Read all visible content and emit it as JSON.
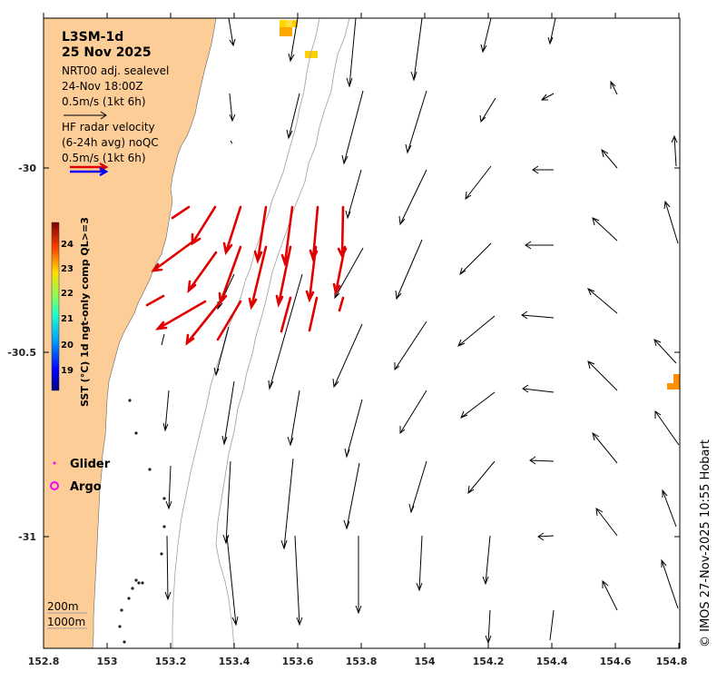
{
  "title": {
    "product": "L3SM-1d",
    "date": "25 Nov 2025"
  },
  "legend": {
    "sealevel_line": "NRT00 adj. sealevel",
    "sealevel_time": "24-Nov 18:00Z",
    "sealevel_scale": "0.5m/s (1kt 6h)",
    "radar_line1": "HF radar velocity",
    "radar_line2": "(6-24h avg) noQC",
    "radar_scale": "0.5m/s (1kt 6h)",
    "glider_label": "Glider",
    "argo_label": "Argo",
    "contour_200": "200m",
    "contour_1000": "1000m"
  },
  "colorbar": {
    "label": "SST (°C) 1d ngt-only comp QL>=3",
    "ticks": [
      "24",
      "23",
      "22",
      "21",
      "20",
      "19"
    ]
  },
  "axes": {
    "x_ticks": [
      "152.8",
      "153",
      "153.2",
      "153.4",
      "153.6",
      "153.8",
      "154",
      "154.2",
      "154.4",
      "154.6",
      "154.8"
    ],
    "y_ticks": [
      "-30",
      "-30.5",
      "-31"
    ]
  },
  "credit": "© IMOS 27-Nov-2025 10:55 Hobart",
  "colors": {
    "land": "#fdcd98",
    "radar_arrow": "#e10000",
    "sealevel_arrow": "#000000",
    "glider_marker": "#ff00ff",
    "argo_marker": "#ff00ff",
    "contour": "#a0a0a0"
  },
  "map_extent": {
    "lon": [
      152.8,
      154.8
    ],
    "lat": [
      -31.3,
      -29.6
    ]
  }
}
